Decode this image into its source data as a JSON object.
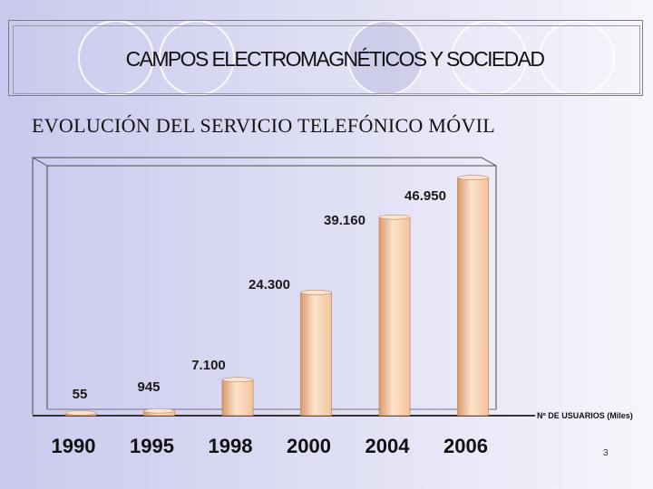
{
  "slide": {
    "title": "CAMPOS ELECTROMAGNÉTICOS Y SOCIEDAD",
    "subtitle": "EVOLUCIÓN DEL SERVICIO TELEFÓNICO MÓVIL",
    "page_number": "3"
  },
  "colors": {
    "bar_light": "#fbe3cc",
    "bar_mid": "#f4c39a",
    "bar_dark": "#d99a6c",
    "frame": "#4a4a4a"
  },
  "chart_data": {
    "type": "bar",
    "categories": [
      "1990",
      "1995",
      "1998",
      "2000",
      "2004",
      "2006"
    ],
    "values": [
      55,
      945,
      7100,
      24300,
      39160,
      46950
    ],
    "value_labels": [
      "55",
      "945",
      "7.100",
      "24.300",
      "39.160",
      "46.950"
    ],
    "ylabel": "Nº DE USUARIOS (Miles)",
    "ylim": [
      0,
      50000
    ],
    "grid": false,
    "legend": "none"
  }
}
